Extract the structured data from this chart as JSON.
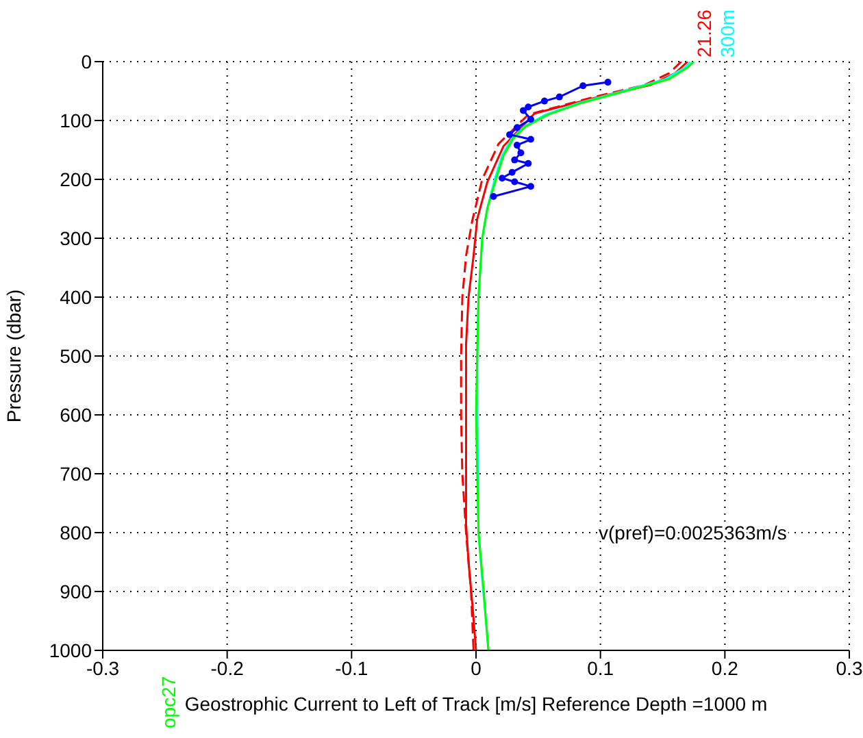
{
  "chart_data": {
    "type": "line",
    "xlabel": "Geostrophic Current to Left of Track [m/s] Reference Depth =1000 m",
    "ylabel": "Pressure (dbar)",
    "xlim": [
      -0.3,
      0.3
    ],
    "xticks": [
      -0.3,
      -0.2,
      -0.1,
      0,
      0.1,
      0.2,
      0.3
    ],
    "ylim": [
      1000,
      0
    ],
    "yticks": [
      0,
      100,
      200,
      300,
      400,
      500,
      600,
      700,
      800,
      900,
      1000
    ],
    "grid": true,
    "legend": false,
    "series": [
      {
        "color": "#ff0000",
        "line_style": "dashed",
        "marker": "none",
        "x": [
          0.165,
          0.155,
          0.135,
          0.095,
          0.042,
          0.018,
          0.005,
          -0.003,
          -0.008,
          -0.011,
          -0.012,
          -0.012,
          -0.011,
          -0.008,
          -0.004,
          -0.002
        ],
        "values": [
          0,
          20,
          40,
          60,
          90,
          140,
          200,
          270,
          330,
          400,
          500,
          600,
          700,
          800,
          900,
          1000
        ]
      },
      {
        "color": "#ff0000",
        "line_style": "solid",
        "marker": "none",
        "x": [
          0.17,
          0.16,
          0.14,
          0.102,
          0.047,
          0.022,
          0.009,
          0.001,
          -0.002,
          -0.006,
          -0.008,
          -0.008,
          -0.008,
          -0.006,
          -0.003,
          0
        ],
        "values": [
          0,
          20,
          40,
          58,
          88,
          144,
          205,
          267,
          330,
          400,
          480,
          600,
          786,
          850,
          920,
          1000
        ]
      },
      {
        "color": "#00ffff",
        "line_style": "solid",
        "marker": "none",
        "x": [
          0.172,
          0.168,
          0.152,
          0.118,
          0.083,
          0.056,
          0.039,
          0.029,
          0.021,
          0.015,
          0.009,
          0.005,
          0.002,
          0.001,
          0.001,
          0.002,
          0.005,
          0.008,
          0.01
        ],
        "values": [
          0,
          10,
          30,
          50,
          70,
          90,
          110,
          130,
          160,
          200,
          250,
          300,
          400,
          500,
          600,
          800,
          880,
          950,
          1000
        ]
      },
      {
        "color": "#00ff00",
        "line_style": "solid",
        "marker": "none",
        "x": [
          0.175,
          0.17,
          0.155,
          0.12,
          0.085,
          0.058,
          0.04,
          0.03,
          0.022,
          0.016,
          0.009,
          0.005,
          0.002,
          0.001,
          0.0,
          0.001,
          0.002,
          0.006,
          0.008,
          0.01
        ],
        "values": [
          0,
          10,
          30,
          50,
          70,
          90,
          110,
          130,
          160,
          200,
          250,
          300,
          400,
          500,
          600,
          700,
          800,
          895,
          950,
          1000
        ]
      },
      {
        "color": "#0000ff",
        "line_style": "solid",
        "marker": "circle",
        "x": [
          0.106,
          0.086,
          0.067,
          0.055,
          0.042,
          0.038,
          0.044,
          0.033,
          0.027,
          0.044,
          0.033,
          0.036,
          0.031,
          0.042,
          0.029,
          0.021,
          0.031,
          0.044,
          0.014
        ],
        "values": [
          35,
          41,
          60,
          67,
          77,
          83,
          98,
          112,
          124,
          132,
          142,
          155,
          167,
          173,
          188,
          198,
          204,
          212,
          229
        ]
      }
    ],
    "annotations": [
      "v(pref)=0.0025363m/s",
      "21.26",
      "300m",
      "opc27"
    ]
  }
}
